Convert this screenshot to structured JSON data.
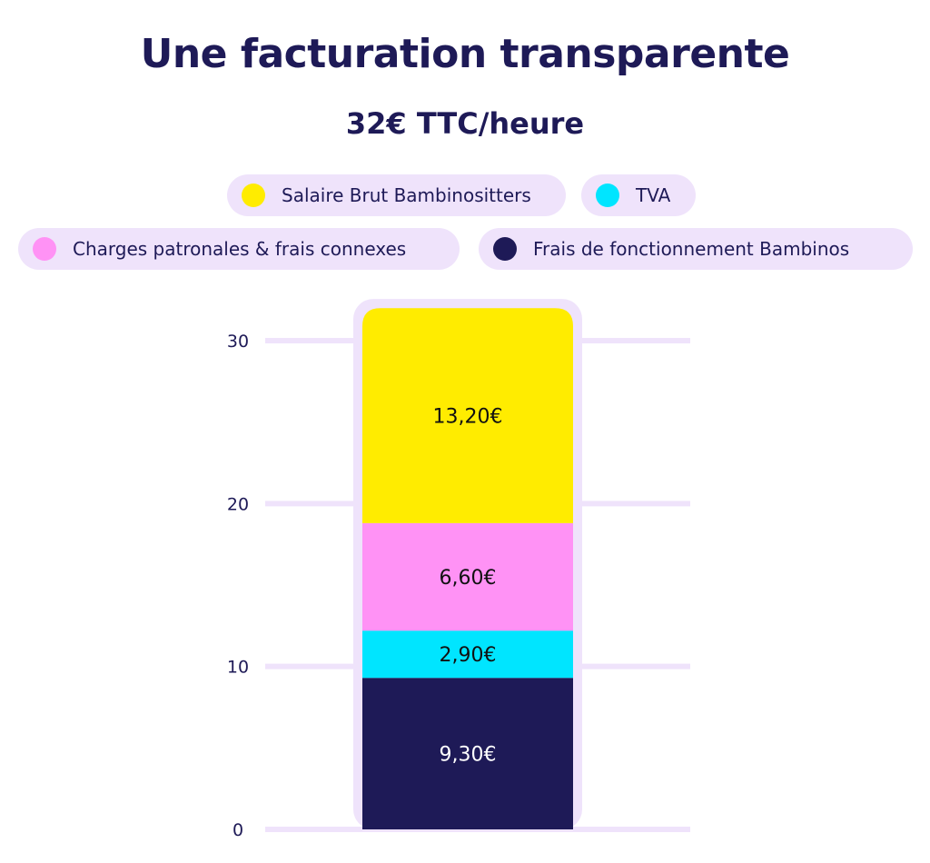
{
  "title": "Une facturation transparente",
  "subtitle": "32€ TTC/heure",
  "legend": [
    {
      "label": "Salaire Brut Bambinositters",
      "color": "#ffec00"
    },
    {
      "label": "TVA",
      "color": "#00e5ff"
    },
    {
      "label": "Charges patronales & frais connexes",
      "color": "#ff92f5"
    },
    {
      "label": "Frais de fonctionnement Bambinos",
      "color": "#1e1a57"
    }
  ],
  "chart_data": {
    "type": "bar",
    "stacked": true,
    "categories": [
      ""
    ],
    "series": [
      {
        "name": "Frais de fonctionnement Bambinos",
        "values": [
          9.3
        ],
        "label": "9,30€",
        "color": "#1e1a57",
        "label_color": "#ffffff"
      },
      {
        "name": "TVA",
        "values": [
          2.9
        ],
        "label": "2,90€",
        "color": "#00e5ff",
        "label_color": "#111111"
      },
      {
        "name": "Charges patronales & frais connexes",
        "values": [
          6.6
        ],
        "label": "6,60€",
        "color": "#ff92f5",
        "label_color": "#111111"
      },
      {
        "name": "Salaire Brut Bambinositters",
        "values": [
          13.2
        ],
        "label": "13,20€",
        "color": "#ffec00",
        "label_color": "#111111"
      }
    ],
    "ylim": [
      0,
      30
    ],
    "yticks": [
      0,
      10,
      20,
      30
    ],
    "ytick_labels": [
      "0",
      "10",
      "20",
      "30"
    ],
    "grid": true,
    "title": "Une facturation transparente",
    "xlabel": "",
    "ylabel": ""
  }
}
